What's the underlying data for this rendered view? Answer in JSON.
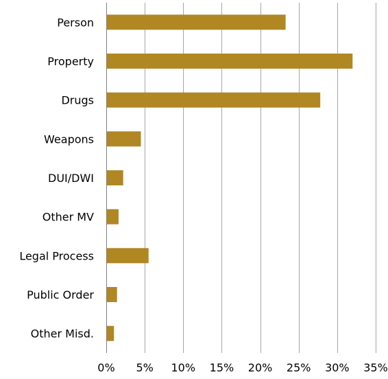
{
  "chart_data": {
    "type": "bar",
    "orientation": "horizontal",
    "categories": [
      "Person",
      "Property",
      "Drugs",
      "Weapons",
      "DUI/DWI",
      "Other MV",
      "Legal Process",
      "Public Order",
      "Other Misd."
    ],
    "values": [
      23.3,
      32.0,
      27.8,
      4.5,
      2.2,
      1.6,
      5.5,
      1.4,
      1.0
    ],
    "xlim": [
      0,
      35
    ],
    "x_ticks": [
      0,
      5,
      10,
      15,
      20,
      25,
      30,
      35
    ],
    "tick_labels": [
      "0%",
      "5%",
      "10%",
      "15%",
      "20%",
      "25%",
      "30%",
      "35%"
    ],
    "title": "",
    "xlabel": "",
    "ylabel": "",
    "grid": "vertical",
    "legend": "none",
    "bar_color": "#b08723",
    "gridline_color": "#a6a6a6"
  }
}
